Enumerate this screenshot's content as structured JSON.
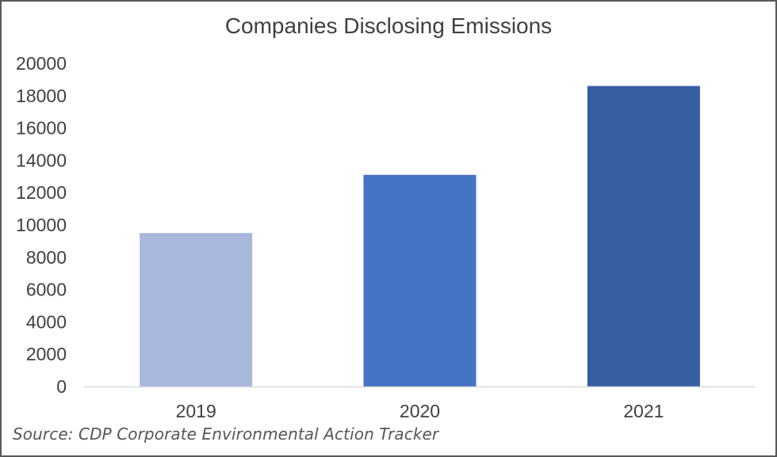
{
  "chart_data": {
    "type": "bar",
    "title": "Companies Disclosing Emissions",
    "xlabel": "",
    "ylabel": "",
    "categories": [
      "2019",
      "2020",
      "2021"
    ],
    "values": [
      9500,
      13100,
      18600
    ],
    "ylim": [
      0,
      20000
    ],
    "yticks": [
      "0",
      "2000",
      "4000",
      "6000",
      "8000",
      "10000",
      "12000",
      "14000",
      "16000",
      "18000",
      "20000"
    ],
    "bar_colors": [
      "#a9b7dc",
      "#4472c4",
      "#355ea3"
    ],
    "grid": false,
    "legend": "none"
  },
  "source": "Source: CDP Corporate Environmental Action Tracker"
}
